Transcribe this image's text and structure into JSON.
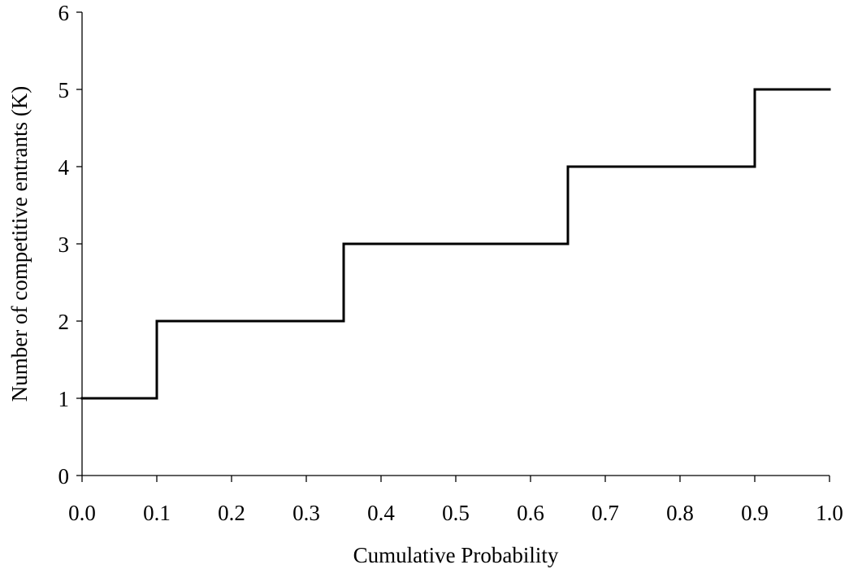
{
  "chart_data": {
    "type": "line",
    "step": true,
    "xlabel": "Cumulative Probability",
    "ylabel": "Number of competitive entrants (K)",
    "xlim": [
      0.0,
      1.0
    ],
    "ylim": [
      0,
      6
    ],
    "xticks": [
      "0.0",
      "0.1",
      "0.2",
      "0.3",
      "0.4",
      "0.5",
      "0.6",
      "0.7",
      "0.8",
      "0.9",
      "1.0"
    ],
    "yticks": [
      "0",
      "1",
      "2",
      "3",
      "4",
      "5",
      "6"
    ],
    "grid": false,
    "legend": "none",
    "series": [
      {
        "color": "#000000",
        "points": [
          {
            "x": 0.0,
            "y": 1
          },
          {
            "x": 0.1,
            "y": 1
          },
          {
            "x": 0.1,
            "y": 2
          },
          {
            "x": 0.35,
            "y": 2
          },
          {
            "x": 0.35,
            "y": 3
          },
          {
            "x": 0.65,
            "y": 3
          },
          {
            "x": 0.65,
            "y": 4
          },
          {
            "x": 0.9,
            "y": 4
          },
          {
            "x": 0.9,
            "y": 5
          },
          {
            "x": 1.0,
            "y": 5
          }
        ]
      }
    ]
  }
}
